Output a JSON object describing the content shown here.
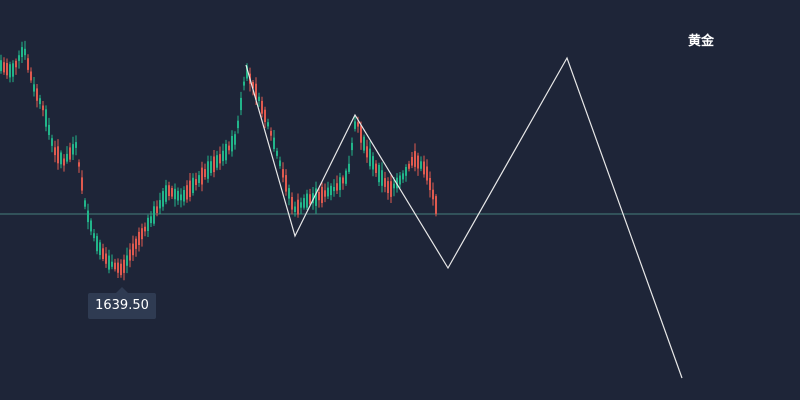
{
  "chart": {
    "symbol": "黄金",
    "low_label": "1639.50",
    "colors": {
      "background": "#1e2538",
      "up": "#e05a4f",
      "down": "#22b58a",
      "projection": "#ffffff",
      "reference_line": "#4f8f8a",
      "label_background": "#2f3b52"
    }
  }
}
